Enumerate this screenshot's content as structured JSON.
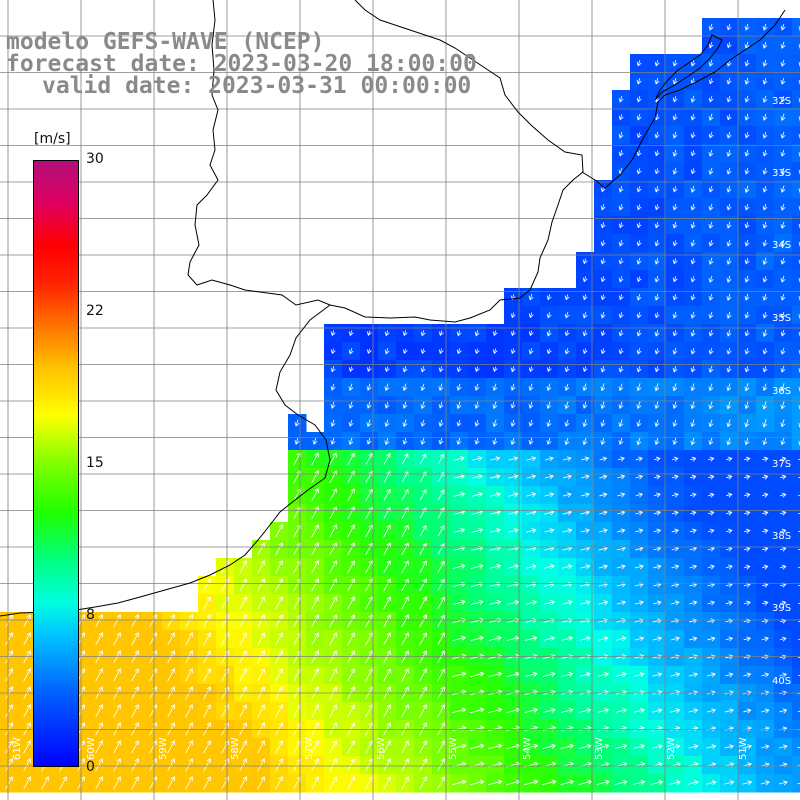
{
  "header": {
    "line1": "modelo GEFS-WAVE (NCEP)",
    "line2": "forecast date: 2023-03-20 18:00:00",
    "line3": "valid date: 2023-03-31 00:00:00"
  },
  "colorbar": {
    "unit": "[m/s]",
    "ticks": [
      "30",
      "22",
      "15",
      "8",
      "0"
    ],
    "tick_values": [
      30,
      22,
      15,
      8,
      0
    ],
    "range": [
      0,
      30
    ]
  },
  "lat_labels": [
    "32S",
    "33S",
    "34S",
    "35S",
    "36S",
    "37S",
    "38S",
    "39S",
    "40S"
  ],
  "lon_labels": [
    "61W",
    "60W",
    "59W",
    "58W",
    "57W",
    "56W",
    "55W",
    "54W",
    "53W",
    "52W",
    "51W"
  ],
  "colors": {
    "land": "#ffffff",
    "grid": "#808080",
    "coast": "#000000",
    "arrows": "#ffffff"
  }
}
